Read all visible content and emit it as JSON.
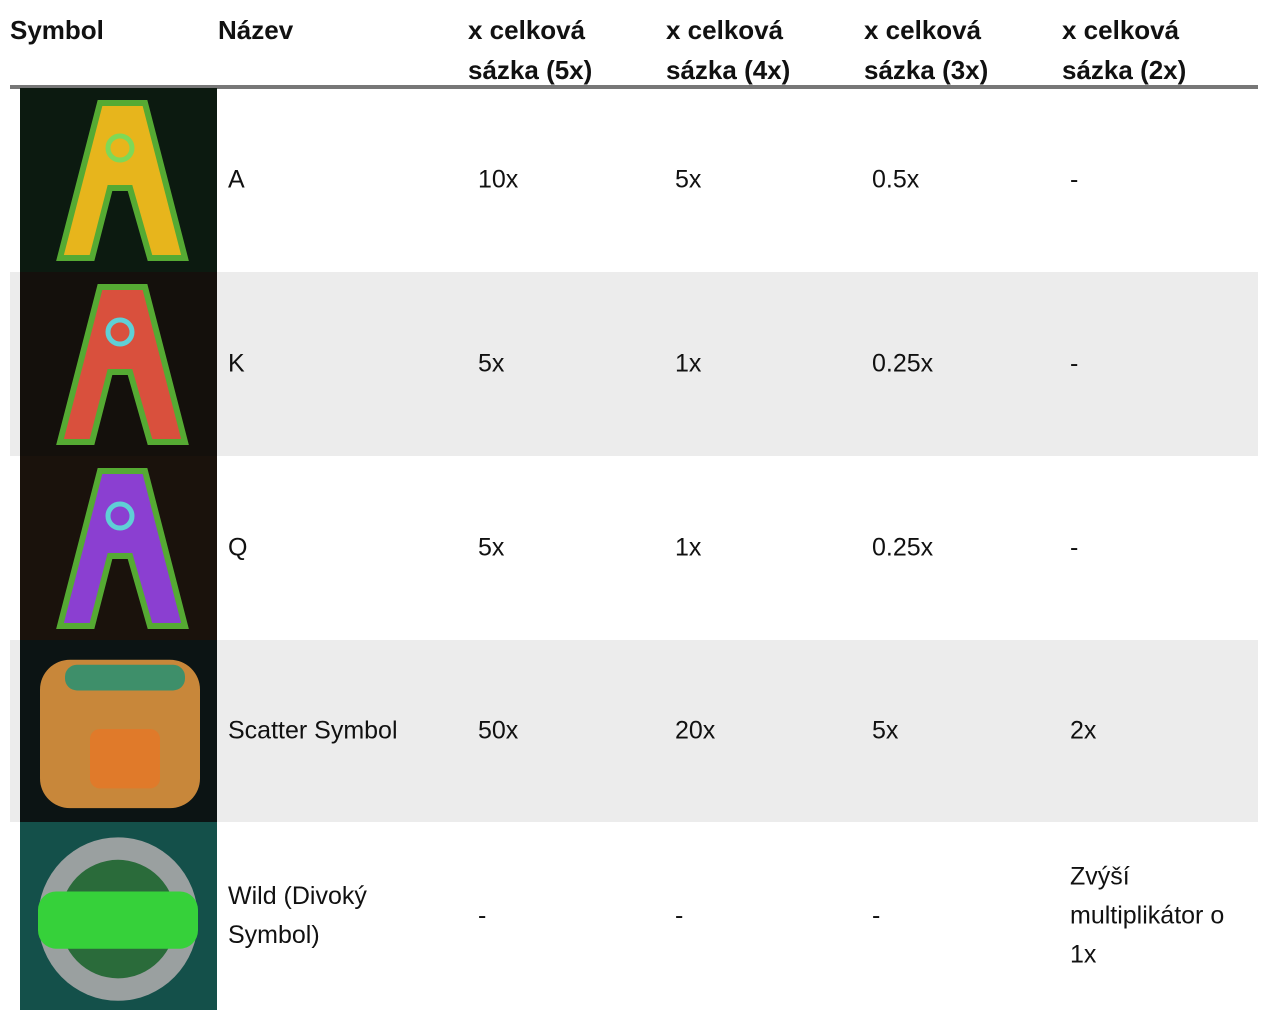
{
  "table": {
    "header": [
      "Symbol",
      "Název",
      "x celková sázka (5x)",
      "x celková sázka (4x)",
      "x celková sázka (3x)",
      "x celková sázka (2x)"
    ],
    "rows": [
      {
        "name": "A",
        "cells": [
          "10x",
          "5x",
          "0.5x",
          "-"
        ]
      },
      {
        "name": "K",
        "cells": [
          "5x",
          "1x",
          "0.25x",
          "-"
        ]
      },
      {
        "name": "Q",
        "cells": [
          "5x",
          "1x",
          "0.25x",
          "-"
        ]
      },
      {
        "name": "Scatter Symbol",
        "cells": [
          "50x",
          "20x",
          "5x",
          "2x"
        ]
      },
      {
        "name": "Wild (Divoký Symbol)",
        "cells": [
          "-",
          "-",
          "-",
          "Zvýší multiplikátor o 1x"
        ]
      }
    ]
  }
}
